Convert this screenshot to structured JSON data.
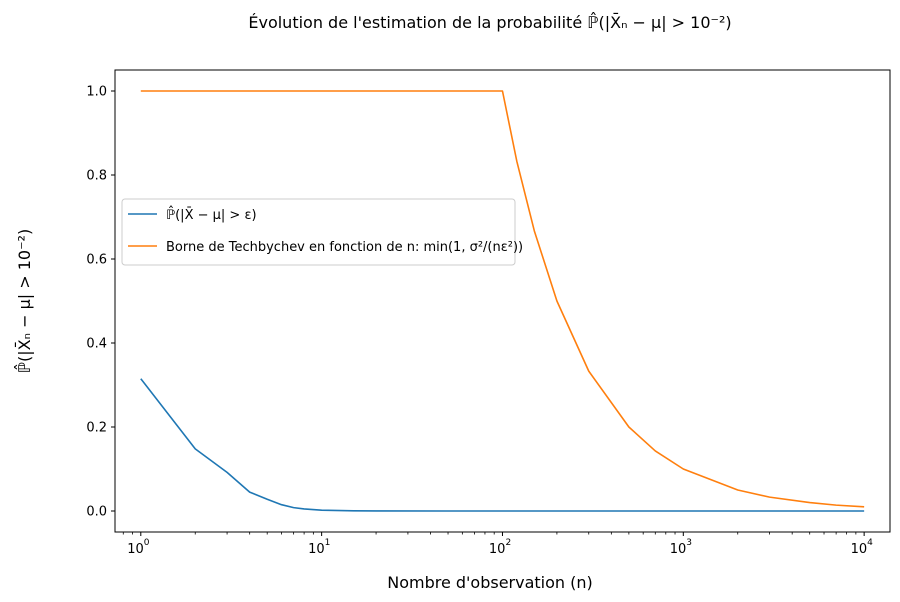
{
  "chart_data": {
    "type": "line",
    "title": "Évolution de l'estimation de la probabilité ℙ̂(|X̄ₙ − μ| > 10⁻²)",
    "xlabel": "Nombre d'observation (n)",
    "ylabel": "ℙ̂(|X̄ₙ − μ| > 10⁻²)",
    "xscale": "log",
    "xlim": [
      0.72,
      13900
    ],
    "ylim": [
      -0.05,
      1.05
    ],
    "xticks": [
      {
        "value": 1,
        "base": "10",
        "exp": "0"
      },
      {
        "value": 10,
        "base": "10",
        "exp": "1"
      },
      {
        "value": 100,
        "base": "10",
        "exp": "2"
      },
      {
        "value": 1000,
        "base": "10",
        "exp": "3"
      },
      {
        "value": 10000,
        "base": "10",
        "exp": "4"
      }
    ],
    "yticks": [
      "0.0",
      "0.2",
      "0.4",
      "0.6",
      "0.8",
      "1.0"
    ],
    "legend_position": "center-left",
    "series": [
      {
        "name": "ℙ̂(|X̄ − μ| > ε)",
        "color": "#1f77b4",
        "x": [
          1,
          2,
          3,
          4,
          5,
          6,
          7,
          8,
          10,
          15,
          20,
          50,
          100,
          1000,
          10000
        ],
        "y": [
          0.315,
          0.148,
          0.092,
          0.045,
          0.028,
          0.015,
          0.008,
          0.005,
          0.002,
          0.0005,
          0.0002,
          0,
          0,
          0,
          0
        ]
      },
      {
        "name": "Borne de Techbychev en fonction de n: min(1, σ²/(nε²))",
        "color": "#ff7f0e",
        "x": [
          1,
          10,
          50,
          100,
          120,
          150,
          200,
          300,
          500,
          700,
          1000,
          2000,
          3000,
          5000,
          7000,
          10000
        ],
        "y": [
          1,
          1,
          1,
          1,
          0.833,
          0.667,
          0.5,
          0.333,
          0.2,
          0.143,
          0.1,
          0.05,
          0.033,
          0.02,
          0.014,
          0.01
        ]
      }
    ]
  }
}
